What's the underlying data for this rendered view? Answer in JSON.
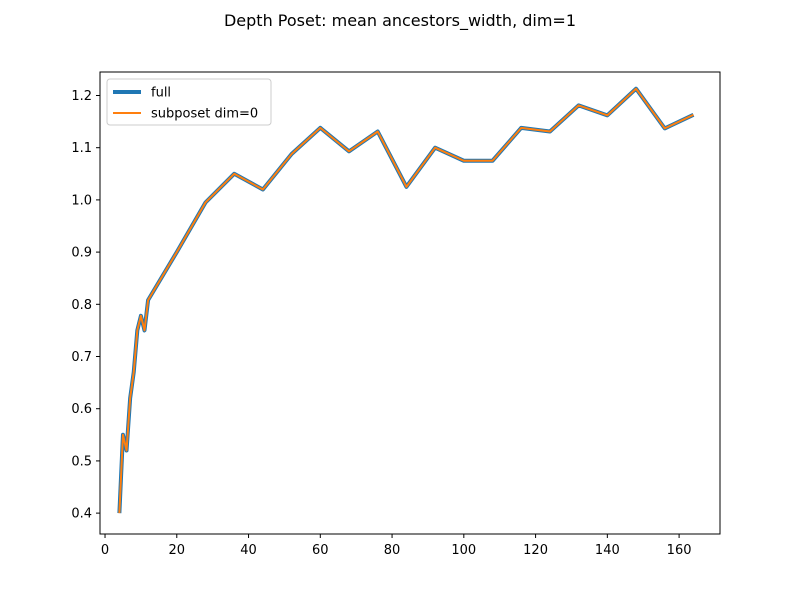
{
  "chart_data": {
    "type": "line",
    "title": "Depth Poset: mean ancestors_width, dim=1",
    "xlabel": "",
    "ylabel": "",
    "xlim": [
      -1.4,
      171.4
    ],
    "ylim": [
      0.36,
      1.245
    ],
    "xticks": [
      0,
      20,
      40,
      60,
      80,
      100,
      120,
      140,
      160
    ],
    "yticks": [
      0.4,
      0.5,
      0.6,
      0.7,
      0.8,
      0.9,
      1.0,
      1.1,
      1.2
    ],
    "ytick_labels": [
      "0.4",
      "0.5",
      "0.6",
      "0.7",
      "0.8",
      "0.9",
      "1.0",
      "1.1",
      "1.2"
    ],
    "grid": false,
    "legend_position": "top-left",
    "x": [
      4,
      5,
      6,
      7,
      8,
      9,
      10,
      11,
      12,
      20,
      28,
      36,
      44,
      52,
      60,
      68,
      76,
      84,
      92,
      100,
      108,
      116,
      124,
      132,
      140,
      148,
      156,
      164
    ],
    "series": [
      {
        "name": "full",
        "color": "#1f77b4",
        "values": [
          0.4,
          0.55,
          0.52,
          0.62,
          0.67,
          0.75,
          0.778,
          0.75,
          0.808,
          0.9,
          0.995,
          1.05,
          1.02,
          1.088,
          1.138,
          1.093,
          1.131,
          1.025,
          1.1,
          1.075,
          1.075,
          1.138,
          1.131,
          1.181,
          1.162,
          1.213,
          1.137,
          1.163
        ]
      },
      {
        "name": "subposet dim=0",
        "color": "#ff7f0e",
        "values": [
          0.4,
          0.55,
          0.52,
          0.62,
          0.67,
          0.75,
          0.778,
          0.75,
          0.808,
          0.9,
          0.995,
          1.05,
          1.02,
          1.088,
          1.138,
          1.093,
          1.131,
          1.025,
          1.1,
          1.075,
          1.075,
          1.138,
          1.131,
          1.181,
          1.162,
          1.213,
          1.137,
          1.163
        ]
      }
    ]
  }
}
